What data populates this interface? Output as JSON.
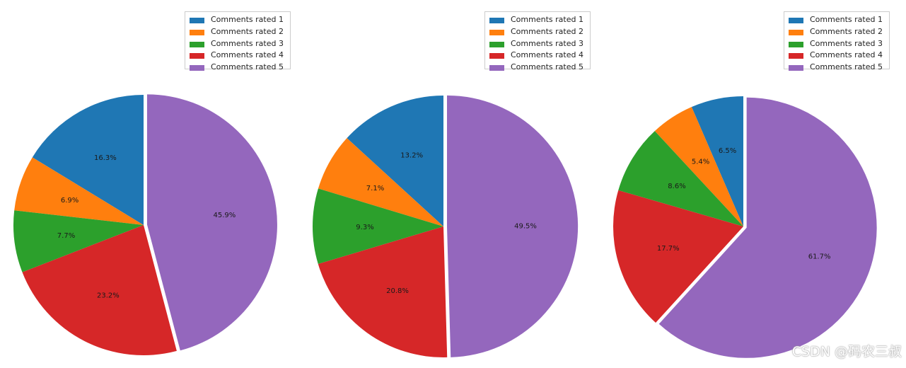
{
  "chart_data": [
    {
      "type": "pie",
      "categories": [
        "Comments rated 1",
        "Comments rated 2",
        "Comments rated 3",
        "Comments rated 4",
        "Comments rated 5"
      ],
      "values": [
        16.3,
        6.9,
        7.7,
        23.2,
        45.9
      ],
      "labels": [
        "16.3%",
        "6.9%",
        "7.7%",
        "23.2%",
        "45.9%"
      ],
      "colors": [
        "#1f77b4",
        "#ff7f0e",
        "#2ca02c",
        "#d62728",
        "#9467bd"
      ],
      "exploded": [
        false,
        false,
        false,
        false,
        true
      ],
      "legend": "top-right",
      "start": "top, counterclockwise"
    },
    {
      "type": "pie",
      "categories": [
        "Comments rated 1",
        "Comments rated 2",
        "Comments rated 3",
        "Comments rated 4",
        "Comments rated 5"
      ],
      "values": [
        13.2,
        7.1,
        9.3,
        20.8,
        49.5
      ],
      "labels": [
        "13.2%",
        "7.1%",
        "9.3%",
        "20.8%",
        "49.5%"
      ],
      "colors": [
        "#1f77b4",
        "#ff7f0e",
        "#2ca02c",
        "#d62728",
        "#9467bd"
      ],
      "exploded": [
        false,
        false,
        false,
        false,
        true
      ],
      "legend": "top-right",
      "start": "top, counterclockwise"
    },
    {
      "type": "pie",
      "categories": [
        "Comments rated 1",
        "Comments rated 2",
        "Comments rated 3",
        "Comments rated 4",
        "Comments rated 5"
      ],
      "values": [
        6.5,
        5.4,
        8.6,
        17.7,
        61.7
      ],
      "labels": [
        "6.5%",
        "5.4%",
        "8.6%",
        "17.7%",
        "61.7%"
      ],
      "colors": [
        "#1f77b4",
        "#ff7f0e",
        "#2ca02c",
        "#d62728",
        "#9467bd"
      ],
      "exploded": [
        false,
        false,
        false,
        false,
        true
      ],
      "legend": "top-right",
      "start": "top, counterclockwise"
    }
  ],
  "watermark": "CSDN @码农三叔"
}
